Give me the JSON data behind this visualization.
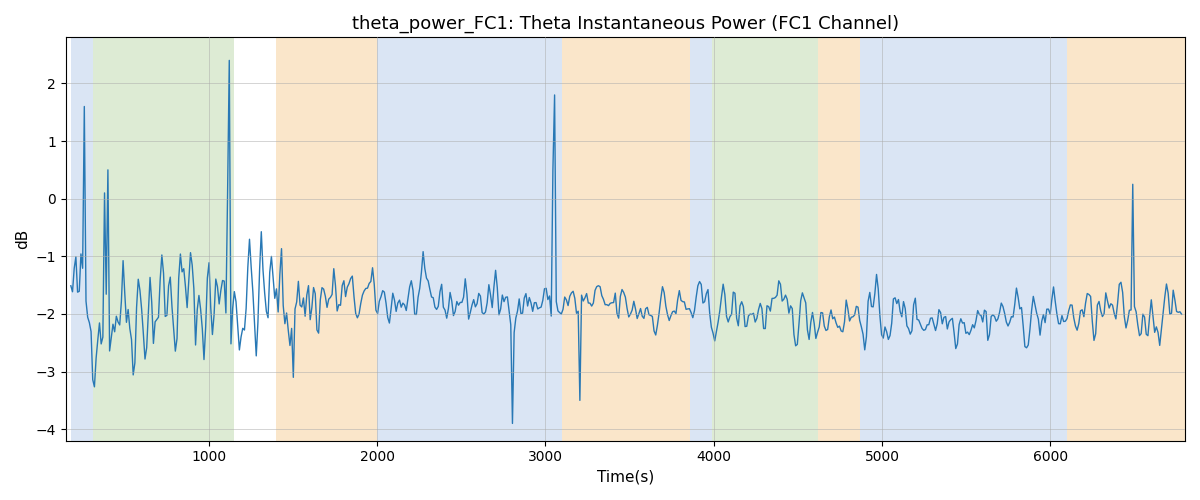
{
  "title": "theta_power_FC1: Theta Instantaneous Power (FC1 Channel)",
  "xlabel": "Time(s)",
  "ylabel": "dB",
  "ylim": [
    -4.2,
    2.8
  ],
  "xlim": [
    150,
    6800
  ],
  "line_color": "#2878b5",
  "line_width": 1.0,
  "bg_color": "#ffffff",
  "grid_color": "#aaaaaa",
  "colored_bands": [
    {
      "xmin": 180,
      "xmax": 310,
      "color": "#aec6e8",
      "alpha": 0.45
    },
    {
      "xmin": 310,
      "xmax": 1150,
      "color": "#b5d4a0",
      "alpha": 0.45
    },
    {
      "xmin": 1400,
      "xmax": 2000,
      "color": "#f5c98a",
      "alpha": 0.45
    },
    {
      "xmin": 2000,
      "xmax": 3100,
      "color": "#aec6e8",
      "alpha": 0.45
    },
    {
      "xmin": 3100,
      "xmax": 3860,
      "color": "#f5c98a",
      "alpha": 0.45
    },
    {
      "xmin": 3860,
      "xmax": 3990,
      "color": "#aec6e8",
      "alpha": 0.45
    },
    {
      "xmin": 3990,
      "xmax": 4620,
      "color": "#b5d4a0",
      "alpha": 0.45
    },
    {
      "xmin": 4620,
      "xmax": 4870,
      "color": "#f5c98a",
      "alpha": 0.45
    },
    {
      "xmin": 4870,
      "xmax": 6100,
      "color": "#aec6e8",
      "alpha": 0.45
    },
    {
      "xmin": 6100,
      "xmax": 6800,
      "color": "#f5c98a",
      "alpha": 0.45
    }
  ],
  "seed": 42,
  "n_points": 660,
  "x_start": 180,
  "x_end": 6780
}
